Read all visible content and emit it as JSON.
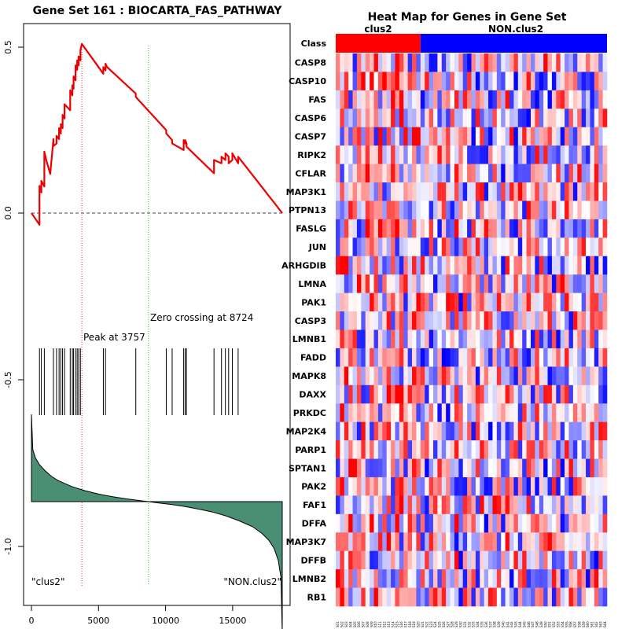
{
  "left_title": "Gene Set  161 : BIOCARTA_FAS_PATHWAY",
  "right_title": "Heat Map for Genes in Gene Set",
  "colors": {
    "running_es": "#ee0000",
    "peak_line": "#cc3333",
    "zero_line": "#33cc33",
    "metric_fill": "#4a8f73",
    "heat_high": "#ff0000",
    "heat_low": "#0000ff",
    "heat_mid": "#ffffff"
  },
  "chart_data": {
    "type": "line",
    "title": "Gene Set  161 : BIOCARTA_FAS_PATHWAY",
    "xlim": [
      0,
      18700
    ],
    "ylim": [
      -1.12,
      0.56
    ],
    "x_ticks": [
      0,
      5000,
      10000,
      15000
    ],
    "y_ticks": [
      -1.0,
      -0.5,
      0.0,
      0.5
    ],
    "x_tick_labels": [
      "0",
      "5000",
      "10000",
      "15000"
    ],
    "y_tick_labels": [
      "-1.0",
      "-0.5",
      "0.0",
      "0.5"
    ],
    "n_genes": 18700,
    "running_es": {
      "x": [
        0,
        600,
        600,
        660,
        740,
        740,
        960,
        960,
        1100,
        1400,
        1640,
        1640,
        1870,
        1870,
        2060,
        2060,
        2190,
        2190,
        2320,
        2320,
        2470,
        2470,
        2890,
        2890,
        3050,
        3050,
        3140,
        3140,
        3290,
        3290,
        3410,
        3410,
        3520,
        3520,
        3650,
        3650,
        3757,
        5360,
        5360,
        5520,
        5520,
        5640,
        7780,
        7780,
        10050,
        10050,
        10490,
        10490,
        11350,
        11350,
        11460,
        11460,
        11560,
        11560,
        13610,
        13610,
        14170,
        14170,
        14460,
        14460,
        14700,
        14700,
        14980,
        14980,
        15410,
        15410,
        18700
      ],
      "y": [
        0.0,
        -0.035,
        0.082,
        0.069,
        0.062,
        0.097,
        0.08,
        0.185,
        0.16,
        0.118,
        0.223,
        0.202,
        0.21,
        0.233,
        0.223,
        0.256,
        0.24,
        0.268,
        0.256,
        0.296,
        0.285,
        0.328,
        0.31,
        0.37,
        0.355,
        0.385,
        0.375,
        0.412,
        0.4,
        0.445,
        0.432,
        0.46,
        0.445,
        0.472,
        0.46,
        0.49,
        0.51,
        0.42,
        0.44,
        0.43,
        0.45,
        0.44,
        0.36,
        0.35,
        0.25,
        0.24,
        0.22,
        0.21,
        0.19,
        0.22,
        0.21,
        0.22,
        0.21,
        0.2,
        0.12,
        0.16,
        0.15,
        0.17,
        0.16,
        0.18,
        0.17,
        0.15,
        0.16,
        0.18,
        0.15,
        0.17,
        0.0
      ]
    },
    "gene_hits": [
      600,
      740,
      960,
      1640,
      1870,
      2060,
      2190,
      2320,
      2470,
      2890,
      3050,
      3140,
      3290,
      3410,
      3520,
      3650,
      5360,
      5520,
      7780,
      10050,
      10490,
      11350,
      11460,
      11560,
      13610,
      14170,
      14460,
      14700,
      14980,
      15410
    ],
    "peak": 3757,
    "zero_crossing": 8724,
    "ranked_metric": {
      "x": [
        0,
        100,
        300,
        600,
        1000,
        1500,
        2000,
        3000,
        4000,
        5000,
        6000,
        7000,
        8000,
        8724,
        9500,
        10500,
        11500,
        12500,
        13500,
        14500,
        15500,
        16500,
        17200,
        17700,
        18100,
        18400,
        18600,
        18700
      ],
      "y": [
        0.52,
        0.31,
        0.26,
        0.22,
        0.185,
        0.15,
        0.125,
        0.09,
        0.065,
        0.045,
        0.03,
        0.018,
        0.007,
        0.0,
        -0.008,
        -0.018,
        -0.03,
        -0.045,
        -0.062,
        -0.085,
        -0.115,
        -0.15,
        -0.19,
        -0.23,
        -0.28,
        -0.35,
        -0.45,
        -0.78
      ]
    }
  },
  "annotations": {
    "peak_label": "Peak at 3757",
    "zero_label": "Zero crossing at 8724",
    "left_class": "\"clus2\"",
    "right_class": "\"NON.clus2\""
  },
  "heatmap": {
    "class_row_label": "Class",
    "group_labels": [
      "clus2",
      "NON.clus2"
    ],
    "n_cols": 64,
    "n_group1": 20,
    "genes": [
      "CASP8",
      "CASP10",
      "FAS",
      "CASP6",
      "CASP7",
      "RIPK2",
      "CFLAR",
      "MAP3K1",
      "PTPN13",
      "FASLG",
      "JUN",
      "ARHGDIB",
      "LMNA",
      "PAK1",
      "CASP3",
      "LMNB1",
      "FADD",
      "MAPK8",
      "DAXX",
      "PRKDC",
      "MAP2K4",
      "PARP1",
      "SPTAN1",
      "PAK2",
      "FAF1",
      "DFFA",
      "MAP3K7",
      "DFFB",
      "LMNB2",
      "RB1"
    ],
    "sample_labels": [
      "S01",
      "S02",
      "S03",
      "S04",
      "S05",
      "S06",
      "S07",
      "S08",
      "S09",
      "S10",
      "S11",
      "S12",
      "S13",
      "S14",
      "S15",
      "S16",
      "S17",
      "S18",
      "S19",
      "S20",
      "S21",
      "S22",
      "S23",
      "S24",
      "S25",
      "S26",
      "S27",
      "S28",
      "S29",
      "S30",
      "S31",
      "S32",
      "S33",
      "S34",
      "S35",
      "S36",
      "S37",
      "S38",
      "S39",
      "S40",
      "S41",
      "S42",
      "S43",
      "S44",
      "S45",
      "S46",
      "S47",
      "S48",
      "S49",
      "S50",
      "S51",
      "S52",
      "S53",
      "S54",
      "S55",
      "S56",
      "S57",
      "S58",
      "S59",
      "S60",
      "S61",
      "S62",
      "S63",
      "S64"
    ]
  }
}
